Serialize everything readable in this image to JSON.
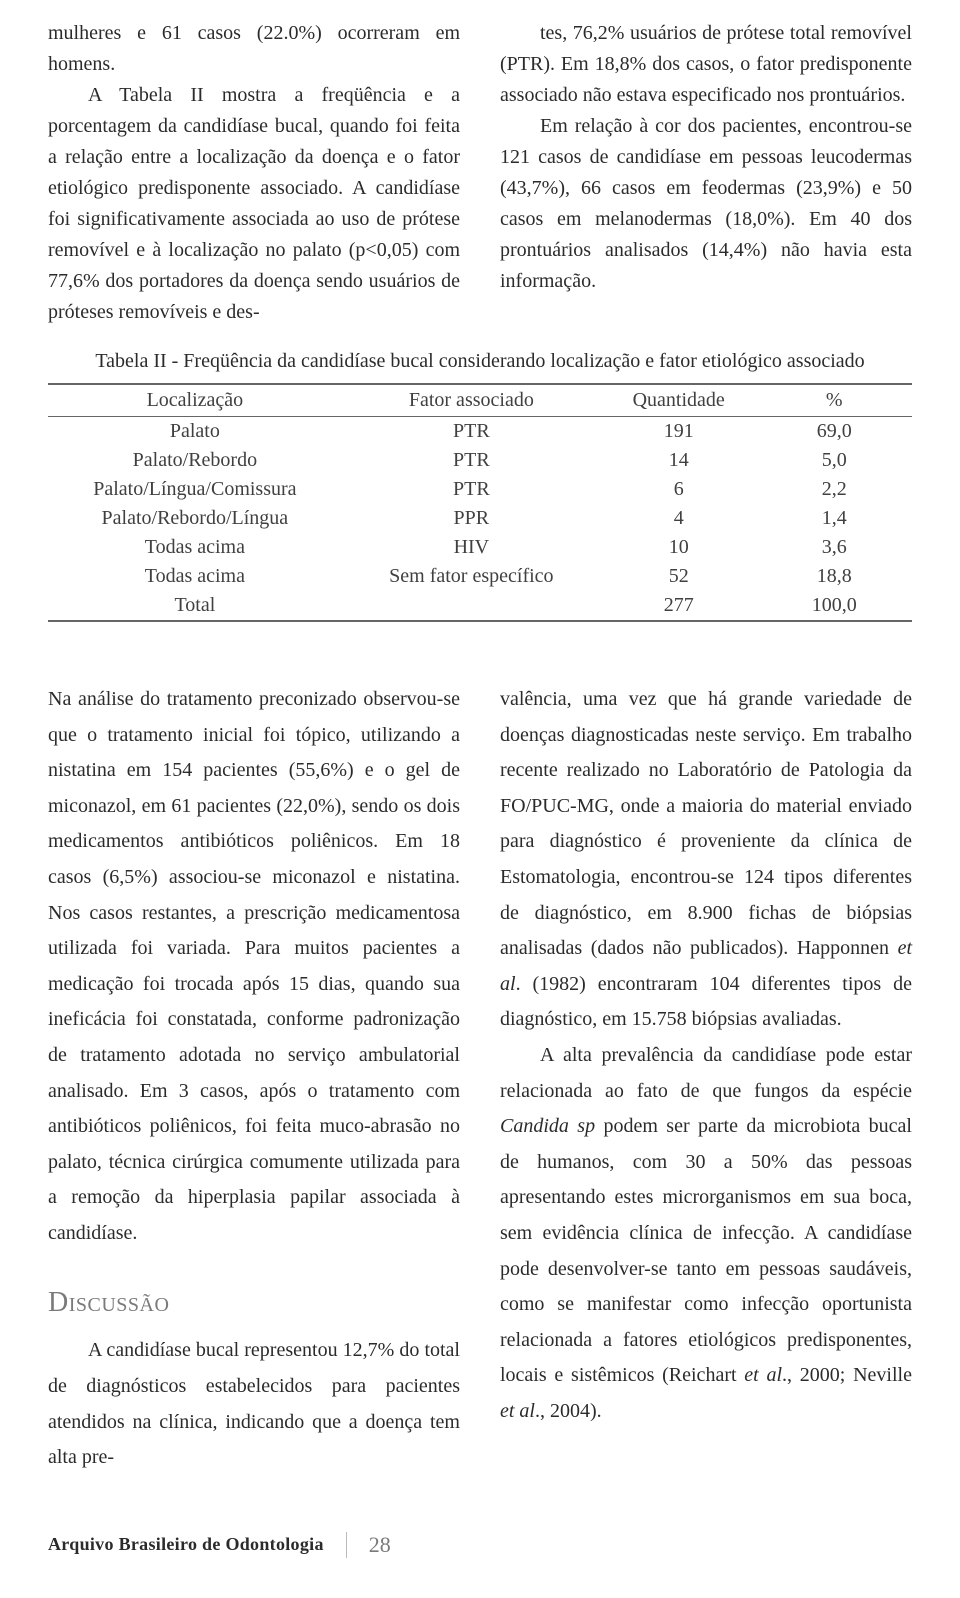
{
  "upper": {
    "left_p1": "mulheres e 61 casos (22.0%) ocorreram em homens.",
    "left_p2": "A Tabela II mostra a freqüência e a porcentagem da candidíase bucal, quando foi feita a relação entre a localização da doença e o fator etiológico predisponente associado. A candidíase foi significativamente associada ao uso de prótese removível e à localização no palato (p<0,05) com 77,6% dos portadores da doença sendo usuários de próteses removíveis e des-",
    "right_p1": "tes, 76,2% usuários de prótese total removível (PTR). Em 18,8% dos casos, o fator predisponente associado não estava especificado nos prontuários.",
    "right_p2": "Em relação à cor dos pacientes, encontrou-se 121 casos de candidíase em pessoas leucodermas (43,7%), 66 casos em feodermas (23,9%) e 50 casos em melanodermas (18,0%). Em 40 dos prontuários analisados (14,4%) não havia esta informação."
  },
  "table": {
    "caption": "Tabela II - Freqüência da candidíase bucal considerando localização e fator etiológico associado",
    "columns": [
      "Localização",
      "Fator associado",
      "Quantidade",
      "%"
    ],
    "rows": [
      [
        "Palato",
        "PTR",
        "191",
        "69,0"
      ],
      [
        "Palato/Rebordo",
        "PTR",
        "14",
        "5,0"
      ],
      [
        "Palato/Língua/Comissura",
        "PTR",
        "6",
        "2,2"
      ],
      [
        "Palato/Rebordo/Língua",
        "PPR",
        "4",
        "1,4"
      ],
      [
        "Todas acima",
        "HIV",
        "10",
        "3,6"
      ],
      [
        "Todas acima",
        "Sem fator específico",
        "52",
        "18,8"
      ],
      [
        "Total",
        "",
        "277",
        "100,0"
      ]
    ],
    "col_widths": [
      "34%",
      "30%",
      "18%",
      "18%"
    ],
    "border_color": "#666666",
    "text_color": "#404040"
  },
  "lower": {
    "left_p1": "Na análise do tratamento preconizado observou-se que o tratamento inicial foi tópico, utilizando a nistatina em 154 pacientes (55,6%) e o gel de miconazol, em 61 pacientes (22,0%), sendo os dois medicamentos antibióticos poliênicos. Em 18 casos (6,5%) associou-se miconazol e nistatina. Nos casos restantes, a prescrição medicamentosa utilizada foi variada. Para muitos pacientes a medicação foi trocada após 15 dias, quando sua ineficácia foi constatada, conforme padronização de tratamento adotada no serviço ambulatorial analisado. Em 3 casos, após o tratamento com antibióticos poliênicos, foi feita muco-abrasão no palato, técnica cirúrgica comumente utilizada para a remoção da hiperplasia papilar associada à candidíase.",
    "heading": "Discussão",
    "left_p2": "A candidíase bucal representou 12,7% do total de diagnósticos estabelecidos para pacientes atendidos na clínica, indicando que a doença tem alta pre-",
    "right_p1_a": "valência, uma vez que há grande variedade de doenças diagnosticadas neste serviço. Em trabalho recente realizado no Laboratório de Patologia da FO/PUC-MG, onde a maioria do material enviado para diagnóstico é proveniente da clínica de Estomatologia, encontrou-se 124 tipos diferentes de diagnóstico, em 8.900 fichas de biópsias analisadas (dados não publicados). Happonnen ",
    "right_p1_i1": "et al",
    "right_p1_b": ". (1982) encontraram 104 diferentes tipos de diagnóstico, em 15.758 biópsias avaliadas.",
    "right_p2_a": "A alta prevalência da candidíase pode estar relacionada ao fato de que fungos da espécie ",
    "right_p2_i1": "Candida sp",
    "right_p2_b": " podem ser parte da microbiota bucal de humanos, com 30 a 50% das pessoas apresentando estes microrganismos em sua boca, sem evidência clínica de infecção. A candidíase pode desenvolver-se tanto em pessoas saudáveis, como se manifestar como infecção oportunista relacionada a fatores etiológicos predisponentes, locais e sistêmicos (Reichart ",
    "right_p2_i2": "et al",
    "right_p2_c": "., 2000; Neville ",
    "right_p2_i3": "et al",
    "right_p2_d": "., 2004)."
  },
  "footer": {
    "journal": "Arquivo Brasileiro de Odontologia",
    "page": "28"
  }
}
